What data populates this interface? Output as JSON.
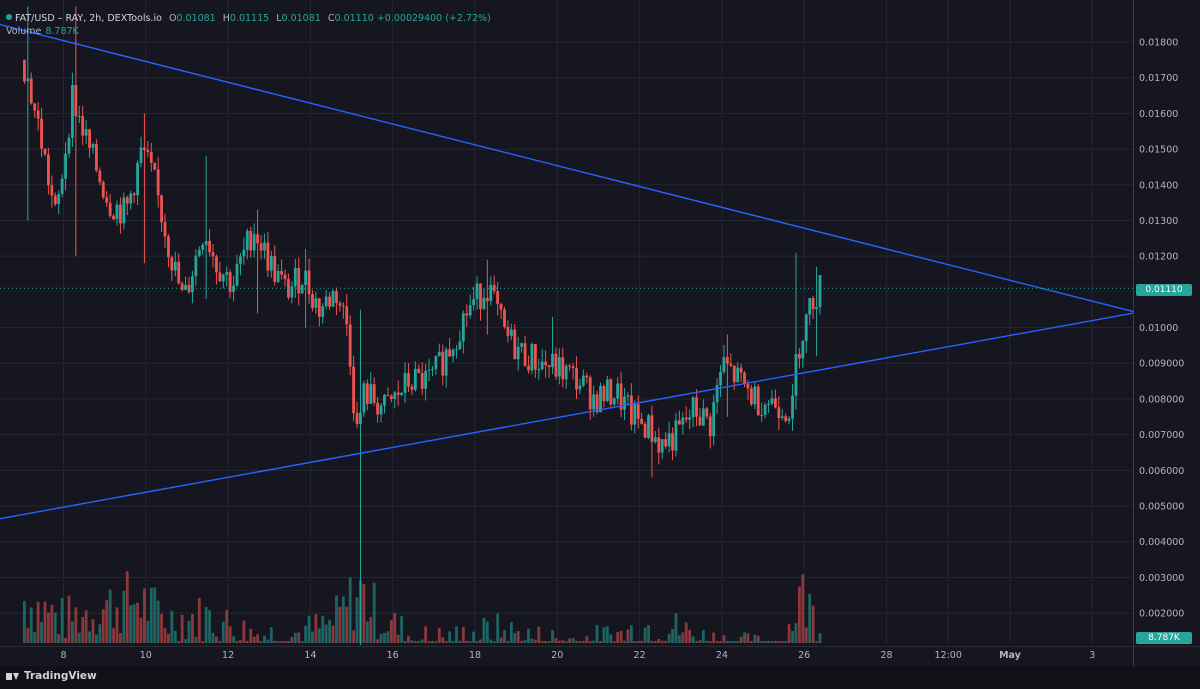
{
  "legend": {
    "symbol": "FAT/USD – RAY, 2h, DEXTools.io",
    "o_label": "O",
    "o_value": "0.01081",
    "h_label": "H",
    "h_value": "0.01115",
    "l_label": "L",
    "l_value": "0.01081",
    "c_label": "C",
    "c_value": "0.01110",
    "change": "+0.00029400 (+2.72%)",
    "volume_label": "Volume",
    "volume_value": "8.787K"
  },
  "tags": {
    "last_price": "0.01110",
    "last_volume": "8.787K"
  },
  "footer": {
    "brand": "TradingView"
  },
  "colors": {
    "background": "#161620",
    "up": "#26a69a",
    "down": "#ef5350",
    "trendline": "#2962ff",
    "grid": "#242733",
    "text": "#b2b5be"
  },
  "chart_data": {
    "type": "candlestick",
    "title": "FAT/USD – RAY, 2h, DEXTools.io",
    "interval": "2h",
    "x_ticks": [
      "8",
      "10",
      "12",
      "14",
      "16",
      "18",
      "20",
      "22",
      "24",
      "26",
      "28",
      "12:00",
      "May",
      "3"
    ],
    "y_ticks": [
      "0.01800",
      "0.01700",
      "0.01600",
      "0.01500",
      "0.01400",
      "0.01300",
      "0.01200",
      "0.01000",
      "0.009000",
      "0.008000",
      "0.007000",
      "0.006000",
      "0.005000",
      "0.004000",
      "0.003000",
      "0.002000"
    ],
    "ylim": [
      0.0005,
      0.0188
    ],
    "price_path": [
      [
        7.1,
        0.0175
      ],
      [
        7.5,
        0.0155
      ],
      [
        7.9,
        0.013
      ],
      [
        8.3,
        0.0165
      ],
      [
        8.7,
        0.015
      ],
      [
        9.2,
        0.0135
      ],
      [
        9.6,
        0.0132
      ],
      [
        10.0,
        0.015
      ],
      [
        10.3,
        0.014
      ],
      [
        10.7,
        0.012
      ],
      [
        11.0,
        0.0107
      ],
      [
        11.5,
        0.0128
      ],
      [
        11.8,
        0.0118
      ],
      [
        12.2,
        0.0112
      ],
      [
        12.7,
        0.0128
      ],
      [
        13.1,
        0.0118
      ],
      [
        13.5,
        0.011
      ],
      [
        13.9,
        0.0115
      ],
      [
        14.3,
        0.0105
      ],
      [
        14.7,
        0.011
      ],
      [
        15.0,
        0.01
      ],
      [
        15.2,
        0.007
      ],
      [
        15.4,
        0.0082
      ],
      [
        15.9,
        0.0077
      ],
      [
        16.5,
        0.0085
      ],
      [
        17.0,
        0.0085
      ],
      [
        17.5,
        0.0095
      ],
      [
        17.9,
        0.0105
      ],
      [
        18.4,
        0.0112
      ],
      [
        18.8,
        0.0098
      ],
      [
        19.2,
        0.0093
      ],
      [
        19.7,
        0.009
      ],
      [
        20.2,
        0.0088
      ],
      [
        20.6,
        0.0085
      ],
      [
        21.0,
        0.008
      ],
      [
        21.5,
        0.0082
      ],
      [
        21.9,
        0.0075
      ],
      [
        22.3,
        0.0072
      ],
      [
        22.6,
        0.0067
      ],
      [
        23.0,
        0.007
      ],
      [
        23.4,
        0.0077
      ],
      [
        23.8,
        0.0073
      ],
      [
        24.1,
        0.009
      ],
      [
        24.5,
        0.0085
      ],
      [
        24.9,
        0.008
      ],
      [
        25.4,
        0.0079
      ],
      [
        25.8,
        0.0077
      ],
      [
        25.9,
        0.0093
      ],
      [
        26.1,
        0.0101
      ],
      [
        26.3,
        0.0108
      ],
      [
        26.45,
        0.0111
      ]
    ],
    "wicks": [
      [
        7.1,
        0.013,
        0.019
      ],
      [
        8.3,
        0.012,
        0.019
      ],
      [
        10.0,
        0.0118,
        0.016
      ],
      [
        11.5,
        0.0108,
        0.0148
      ],
      [
        12.7,
        0.0104,
        0.0133
      ],
      [
        13.9,
        0.01,
        0.0122
      ],
      [
        15.2,
        0.0011,
        0.0105
      ],
      [
        18.3,
        0.0098,
        0.0119
      ],
      [
        19.9,
        0.0087,
        0.0103
      ],
      [
        22.3,
        0.0058,
        0.0077
      ],
      [
        24.1,
        0.0075,
        0.0098
      ],
      [
        25.8,
        0.0077,
        0.0121
      ],
      [
        26.3,
        0.0092,
        0.0117
      ]
    ],
    "volume_profile": [
      [
        7.0,
        0.0026
      ],
      [
        8.0,
        0.0018
      ],
      [
        9.0,
        0.0023
      ],
      [
        9.8,
        0.0026
      ],
      [
        10.5,
        0.0018
      ],
      [
        11.5,
        0.0019
      ],
      [
        12.5,
        0.0013
      ],
      [
        13.5,
        0.0012
      ],
      [
        14.5,
        0.0016
      ],
      [
        15.2,
        0.0029
      ],
      [
        15.7,
        0.0019
      ],
      [
        16.5,
        0.0011
      ],
      [
        17.5,
        0.0011
      ],
      [
        18.5,
        0.0014
      ],
      [
        19.5,
        0.0011
      ],
      [
        20.5,
        0.001
      ],
      [
        21.5,
        0.0012
      ],
      [
        22.5,
        0.0017
      ],
      [
        23.5,
        0.0011
      ],
      [
        24.5,
        0.0009
      ],
      [
        25.5,
        0.0008
      ],
      [
        25.9,
        0.0028
      ],
      [
        26.4,
        0.0016
      ]
    ],
    "trendlines": [
      {
        "from": [
          7.1,
          0.0183
        ],
        "to": [
          28.0,
          0.0122
        ],
        "label": ""
      },
      {
        "from": [
          7.1,
          0.00478
        ],
        "to": [
          28.0,
          0.00915
        ],
        "label": ""
      }
    ],
    "last_price_line": 0.0111
  }
}
